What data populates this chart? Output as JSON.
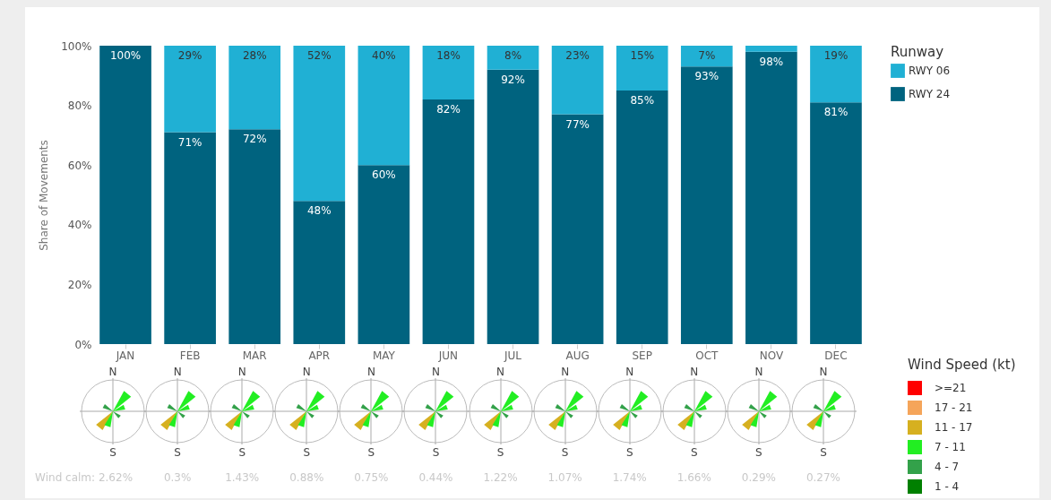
{
  "chart_data": [
    {
      "type": "bar",
      "stacked": true,
      "ylabel": "Share of Movements",
      "legend_title": "Runway",
      "legend": "right",
      "grid": false,
      "categories": [
        "JAN",
        "FEB",
        "MAR",
        "APR",
        "MAY",
        "JUN",
        "JUL",
        "AUG",
        "SEP",
        "OCT",
        "NOV",
        "DEC"
      ],
      "series": [
        {
          "name": "RWY 24",
          "color": "#00637f",
          "values": [
            100,
            71,
            72,
            48,
            60,
            82,
            92,
            77,
            85,
            93,
            98,
            81
          ],
          "value_labels": [
            "100%",
            "71%",
            "72%",
            "48%",
            "60%",
            "82%",
            "92%",
            "77%",
            "85%",
            "93%",
            "98%",
            "81%"
          ]
        },
        {
          "name": "RWY 06",
          "color": "#20b0d4",
          "values": [
            0,
            29,
            28,
            52,
            40,
            18,
            8,
            23,
            15,
            7,
            2,
            19
          ],
          "value_labels": [
            null,
            "29%",
            "28%",
            "52%",
            "40%",
            "18%",
            "8%",
            "23%",
            "15%",
            "7%",
            null,
            "19%"
          ]
        }
      ],
      "ylim": [
        0,
        100
      ],
      "yticks": [
        {
          "value": 0,
          "label": "0%"
        },
        {
          "value": 20,
          "label": "20%"
        },
        {
          "value": 40,
          "label": "40%"
        },
        {
          "value": 60,
          "label": "60%"
        },
        {
          "value": 80,
          "label": "80%"
        },
        {
          "value": 100,
          "label": "100%"
        }
      ]
    },
    {
      "type": "other",
      "legend_title": "Wind Speed (kt)",
      "categories": [
        ">=21",
        "17 - 21",
        "11 - 17",
        "7 - 11",
        "4 - 7",
        "1 - 4"
      ],
      "colors": [
        "#ff0000",
        "#f5a55a",
        "#d6b020",
        "#22ee22",
        "#33a14a",
        "#008000"
      ],
      "annotations": [
        "N",
        "S",
        "Wind calm: 2.62%",
        "N",
        "S",
        "0.3%",
        "N",
        "S",
        "1.43%",
        "N",
        "S",
        "0.88%",
        "N",
        "S",
        "0.75%",
        "N",
        "S",
        "0.44%",
        "N",
        "S",
        "1.22%",
        "N",
        "S",
        "1.07%",
        "N",
        "S",
        "1.74%",
        "N",
        "S",
        "1.66%",
        "N",
        "S",
        "0.29%",
        "N",
        "S",
        "0.27%"
      ]
    }
  ]
}
